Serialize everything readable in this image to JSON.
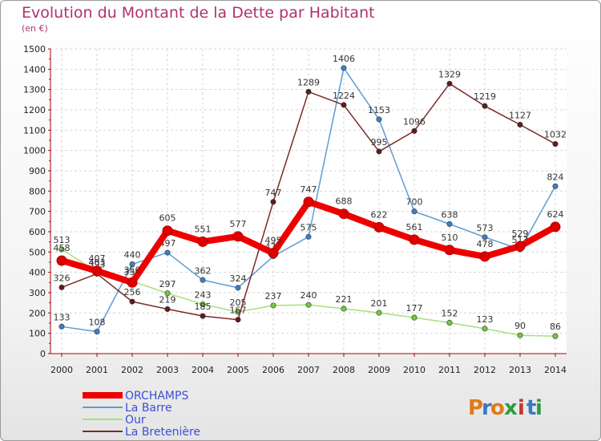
{
  "title": "Evolution du Montant de la Dette par Habitant",
  "unit": "(en €)",
  "logo": {
    "text": "Proxiti",
    "letters": [
      "P",
      "r",
      "o",
      "x",
      "i",
      "t",
      "i"
    ],
    "colors": [
      "#e07a1a",
      "#3b78c4",
      "#e07a1a",
      "#2a9c3f",
      "#c0392b",
      "#3b78c4",
      "#2a9c3f"
    ]
  },
  "chart_data": {
    "type": "line",
    "x": [
      "2000",
      "2001",
      "2002",
      "2003",
      "2004",
      "2005",
      "2006",
      "2007",
      "2008",
      "2009",
      "2010",
      "2011",
      "2012",
      "2013",
      "2014"
    ],
    "ylim": [
      0,
      1500
    ],
    "yticks": [
      "0",
      "100",
      "200",
      "300",
      "400",
      "500",
      "600",
      "700",
      "800",
      "900",
      "1000",
      "1100",
      "1200",
      "1300",
      "1400",
      "1500"
    ],
    "grid": true,
    "legend_position": "bottom-left",
    "series": [
      {
        "name": "La Barre",
        "color": "#5b9bd5",
        "dot": "#3d7fc4",
        "values": [
          133,
          108,
          440,
          497,
          362,
          324,
          479,
          575,
          1406,
          1153,
          700,
          638,
          573,
          513,
          824
        ],
        "labels": [
          "133",
          "108",
          "440",
          "497",
          "362",
          "324",
          "479",
          "575",
          "1406",
          "1153",
          "700",
          "638",
          "573",
          "513",
          "824"
        ]
      },
      {
        "name": "Our",
        "color": "#a6e07a",
        "dot": "#77c83c",
        "values": [
          513,
          403,
          356,
          297,
          243,
          205,
          237,
          240,
          221,
          201,
          177,
          152,
          123,
          90,
          86
        ],
        "labels": [
          "513",
          "403",
          "356",
          "297",
          "243",
          "205",
          "237",
          "240",
          "221",
          "201",
          "177",
          "152",
          "123",
          "90",
          "86"
        ]
      },
      {
        "name": "La Bretenière",
        "color": "#7b2a2a",
        "dot": "#5e1c1c",
        "values": [
          326,
          393,
          256,
          219,
          185,
          167,
          747,
          1289,
          1224,
          995,
          1096,
          1329,
          1219,
          1127,
          1032
        ],
        "labels": [
          "326",
          "393",
          "256",
          "219",
          "185",
          "167",
          "747",
          "1289",
          "1224",
          "995",
          "1096",
          "1329",
          "1219",
          "1127",
          "1032"
        ]
      },
      {
        "name": "ORCHAMPS",
        "color": "#ee0000",
        "dot": "#dd0000",
        "thick": true,
        "values": [
          458,
          407,
          350,
          605,
          551,
          577,
          495,
          747,
          688,
          622,
          561,
          510,
          478,
          529,
          624
        ],
        "labels": [
          "458",
          "407",
          "350",
          "605",
          "551",
          "577",
          "495",
          "747",
          "688",
          "622",
          "561",
          "510",
          "478",
          "529",
          "624"
        ]
      }
    ],
    "legend": [
      "ORCHAMPS",
      "La Barre",
      "Our",
      "La Bretenière"
    ]
  }
}
